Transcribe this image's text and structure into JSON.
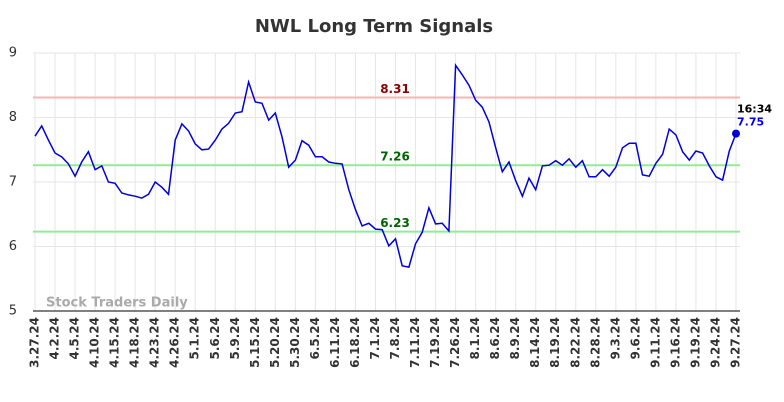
{
  "chart_data": {
    "type": "line",
    "title": "NWL Long Term Signals",
    "watermark": "Stock Traders Daily",
    "categories": [
      "3.27.24",
      null,
      null,
      "4.2.24",
      null,
      null,
      "4.5.24",
      null,
      null,
      "4.10.24",
      null,
      null,
      "4.15.24",
      null,
      null,
      "4.18.24",
      null,
      null,
      "4.23.24",
      null,
      null,
      "4.26.24",
      null,
      null,
      "5.1.24",
      null,
      null,
      "5.6.24",
      null,
      null,
      "5.9.24",
      null,
      null,
      "5.15.24",
      null,
      null,
      "5.20.24",
      null,
      null,
      "5.30.24",
      null,
      null,
      "6.5.24",
      null,
      null,
      "6.11.24",
      null,
      null,
      "6.18.24",
      null,
      null,
      "7.1.24",
      null,
      null,
      "7.8.24",
      null,
      null,
      "7.11.24",
      null,
      null,
      "7.19.24",
      null,
      null,
      "7.26.24",
      null,
      null,
      "8.1.24",
      null,
      null,
      "8.6.24",
      null,
      null,
      "8.9.24",
      null,
      null,
      "8.14.24",
      null,
      null,
      "8.19.24",
      null,
      null,
      "8.22.24",
      null,
      null,
      "8.28.24",
      null,
      null,
      "9.3.24",
      null,
      null,
      "9.6.24",
      null,
      null,
      "9.11.24",
      null,
      null,
      "9.16.24",
      null,
      null,
      "9.19.24",
      null,
      null,
      "9.24.24",
      null,
      null,
      "9.27.24"
    ],
    "series": [
      {
        "color": "#0000dd",
        "values": [
          7.71,
          7.87,
          7.65,
          7.45,
          7.39,
          7.28,
          7.09,
          7.31,
          7.47,
          7.19,
          7.25,
          7.0,
          6.98,
          6.83,
          6.8,
          6.78,
          6.75,
          6.81,
          7.0,
          6.92,
          6.81,
          7.65,
          7.9,
          7.79,
          7.59,
          7.5,
          7.51,
          7.65,
          7.82,
          7.91,
          8.07,
          8.09,
          8.55,
          8.24,
          8.22,
          7.96,
          8.07,
          7.7,
          7.23,
          7.34,
          7.64,
          7.57,
          7.39,
          7.39,
          7.31,
          7.29,
          7.28,
          6.88,
          6.57,
          6.32,
          6.36,
          6.27,
          6.26,
          6.01,
          6.12,
          5.7,
          5.68,
          6.04,
          6.22,
          6.6,
          6.35,
          6.36,
          6.24,
          8.81,
          8.66,
          8.5,
          8.27,
          8.16,
          7.93,
          7.53,
          7.16,
          7.31,
          7.02,
          6.78,
          7.06,
          6.88,
          7.25,
          7.26,
          7.33,
          7.26,
          7.36,
          7.23,
          7.33,
          7.08,
          7.08,
          7.19,
          7.09,
          7.23,
          7.53,
          7.6,
          7.6,
          7.11,
          7.09,
          7.29,
          7.43,
          7.82,
          7.73,
          7.47,
          7.34,
          7.48,
          7.45,
          7.25,
          7.08,
          7.03,
          7.48,
          7.75
        ]
      }
    ],
    "last_point_time": "16:34",
    "reference_lines": [
      {
        "value": 8.31,
        "color": "#f5b5b5",
        "label_color": "#8b0000"
      },
      {
        "value": 7.26,
        "color": "#90ee90",
        "label_color": "#006400"
      },
      {
        "value": 6.23,
        "color": "#90ee90",
        "label_color": "#006400"
      }
    ],
    "ylim": [
      5,
      9
    ],
    "yticks": [
      5,
      6,
      7,
      8,
      9
    ],
    "grid": true
  }
}
